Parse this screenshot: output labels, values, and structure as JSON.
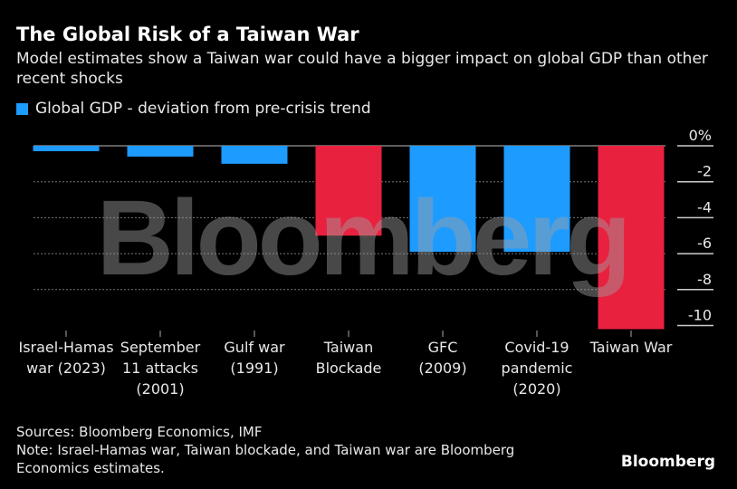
{
  "title": "The Global Risk of a Taiwan War",
  "subtitle": "Model estimates show a Taiwan war could have a bigger impact on global GDP than other recent shocks",
  "legend_label": "Global GDP - deviation from pre-crisis trend",
  "sources": "Sources: Bloomberg Economics, IMF",
  "note": "Note: Israel-Hamas war, Taiwan blockade, and Taiwan war are Bloomberg Economics estimates.",
  "logo": "Bloomberg",
  "watermark": "Bloomberg",
  "colors": {
    "estimate": "#e8213f",
    "historical": "#1e9bff",
    "background": "#000000"
  },
  "chart_data": {
    "type": "bar",
    "categories": [
      [
        "Israel-Hamas",
        "war (2023)"
      ],
      [
        "September",
        "11 attacks",
        "(2001)"
      ],
      [
        "Gulf war",
        "(1991)"
      ],
      [
        "Taiwan",
        "Blockade"
      ],
      [
        "GFC",
        "(2009)"
      ],
      [
        "Covid-19",
        "pandemic",
        "(2020)"
      ],
      [
        "Taiwan War"
      ]
    ],
    "series": [
      {
        "name": "Global GDP - deviation from pre-crisis trend",
        "values": [
          -0.3,
          -0.6,
          -1.0,
          -5.0,
          -5.9,
          -5.9,
          -10.2
        ],
        "colors": [
          "#1e9bff",
          "#1e9bff",
          "#1e9bff",
          "#e8213f",
          "#1e9bff",
          "#1e9bff",
          "#e8213f"
        ]
      }
    ],
    "yticks": [
      "0%",
      "-2",
      "-4",
      "-6",
      "-8",
      "-10"
    ],
    "ytick_values": [
      0,
      -2,
      -4,
      -6,
      -8,
      -10
    ],
    "ylim": [
      -10.2,
      0
    ],
    "y_axis_side": "right",
    "grid": true,
    "legend_position": "top-left"
  }
}
